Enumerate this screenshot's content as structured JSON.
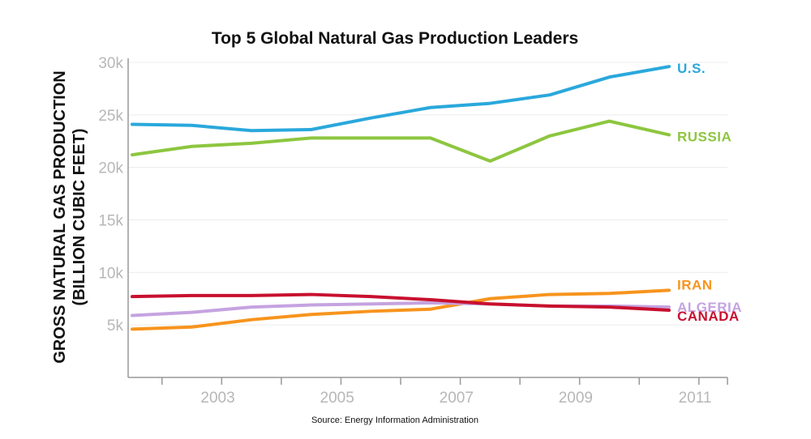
{
  "chart_data": {
    "type": "line",
    "title": "Top 5 Global Natural Gas Production Leaders",
    "ylabel_line1": "GROSS NATURAL GAS PRODUCTION",
    "ylabel_line2": "(BILLION CUBIC FEET)",
    "xlabel": "",
    "source": "Source: Energy Information Administration",
    "x": [
      2002,
      2003,
      2004,
      2005,
      2006,
      2007,
      2008,
      2009,
      2010,
      2011
    ],
    "xlim": [
      2002,
      2011
    ],
    "x_tick_values": [
      2003,
      2005,
      2007,
      2009,
      2011
    ],
    "x_tick_labels": [
      "2003",
      "2005",
      "2007",
      "2009",
      "2011"
    ],
    "ylim": [
      0,
      30000
    ],
    "y_tick_values": [
      5000,
      10000,
      15000,
      20000,
      25000,
      30000
    ],
    "y_tick_labels": [
      "5k",
      "10k",
      "15k",
      "20k",
      "25k",
      "30k"
    ],
    "grid": true,
    "series": [
      {
        "name": "U.S.",
        "color": "#2aa8dc",
        "values": [
          24100,
          24000,
          23500,
          23600,
          24700,
          25700,
          26100,
          26900,
          28600,
          29600
        ]
      },
      {
        "name": "RUSSIA",
        "color": "#8dc63f",
        "values": [
          21200,
          22000,
          22300,
          22800,
          22800,
          22800,
          20600,
          23000,
          24400,
          23100
        ]
      },
      {
        "name": "IRAN",
        "color": "#f7941d",
        "values": [
          4600,
          4800,
          5500,
          6000,
          6300,
          6500,
          7500,
          7900,
          8000,
          8300
        ]
      },
      {
        "name": "ALGERIA",
        "color": "#c5a3e0",
        "values": [
          5900,
          6200,
          6700,
          6900,
          7000,
          7100,
          7000,
          6800,
          6800,
          6700
        ]
      },
      {
        "name": "CANADA",
        "color": "#c8102e",
        "values": [
          7700,
          7800,
          7800,
          7900,
          7700,
          7400,
          7000,
          6800,
          6700,
          6400
        ]
      }
    ]
  }
}
